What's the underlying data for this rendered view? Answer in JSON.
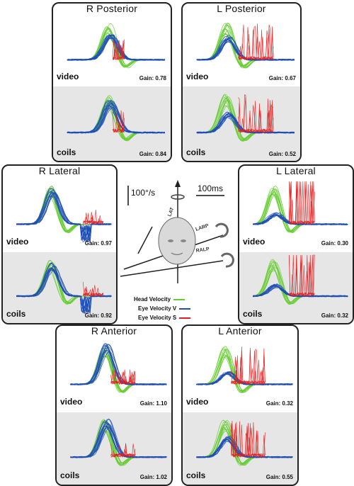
{
  "colors": {
    "head": "#66cc33",
    "eyeV": "#1f4fb5",
    "eyeS": "#e02020"
  },
  "panels": [
    {
      "id": "r-posterior",
      "title": "R Posterior",
      "video_label": "video",
      "coils_label": "coils",
      "video_gain": "Gain: 0.78",
      "coils_gain": "Gain: 0.84"
    },
    {
      "id": "l-posterior",
      "title": "L Posterior",
      "video_label": "video",
      "coils_label": "coils",
      "video_gain": "Gain: 0.67",
      "coils_gain": "Gain: 0.52"
    },
    {
      "id": "r-lateral",
      "title": "R Lateral",
      "video_label": "video",
      "coils_label": "coils",
      "video_gain": "Gain: 0.97",
      "coils_gain": "Gain: 0.92"
    },
    {
      "id": "l-lateral",
      "title": "L Lateral",
      "video_label": "video",
      "coils_label": "coils",
      "video_gain": "Gain: 0.30",
      "coils_gain": "Gain: 0.32"
    },
    {
      "id": "r-anterior",
      "title": "R Anterior",
      "video_label": "video",
      "coils_label": "coils",
      "video_gain": "Gain: 1.10",
      "coils_gain": "Gain: 1.02"
    },
    {
      "id": "l-anterior",
      "title": "L Anterior",
      "video_label": "video",
      "coils_label": "coils",
      "video_gain": "Gain: 0.32",
      "coils_gain": "Gain: 0.55"
    }
  ],
  "center": {
    "scale_velocity": "100°/s",
    "scale_time": "100ms",
    "axis_lat": "LAT",
    "axis_larp": "LARP",
    "axis_ralp": "RALP"
  },
  "legend": [
    {
      "label": "Head Velocity",
      "color_key": "head"
    },
    {
      "label": "Eye Velocity V",
      "color_key": "eyeV"
    },
    {
      "label": "Eye Velocity S",
      "color_key": "eyeS"
    }
  ],
  "chart_data": {
    "type": "line",
    "note_units": "velocity traces, deg/s vs time",
    "panels": [
      {
        "title": "R Posterior",
        "gain_video": 0.78,
        "gain_coils": 0.84
      },
      {
        "title": "L Posterior",
        "gain_video": 0.67,
        "gain_coils": 0.52
      },
      {
        "title": "R Lateral",
        "gain_video": 0.97,
        "gain_coils": 0.92
      },
      {
        "title": "L Lateral",
        "gain_video": 0.3,
        "gain_coils": 0.32
      },
      {
        "title": "R Anterior",
        "gain_video": 1.1,
        "gain_coils": 1.02
      },
      {
        "title": "L Anterior",
        "gain_video": 0.32,
        "gain_coils": 0.55
      }
    ],
    "series": [
      {
        "name": "Head Velocity"
      },
      {
        "name": "Eye Velocity V"
      },
      {
        "name": "Eye Velocity S"
      }
    ]
  }
}
